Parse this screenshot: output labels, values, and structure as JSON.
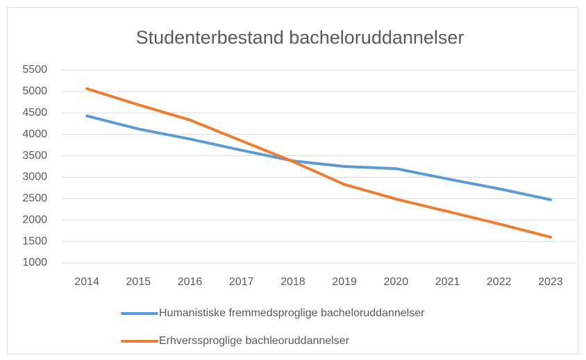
{
  "chart_data": {
    "type": "line",
    "title": "Studenterbestand bacheloruddannelser",
    "categories": [
      "2014",
      "2015",
      "2016",
      "2017",
      "2018",
      "2019",
      "2020",
      "2021",
      "2022",
      "2023"
    ],
    "series": [
      {
        "name": "Humanistiske fremmedsproglige bacheloruddannelser",
        "color": "#5b9bd5",
        "values": [
          4430,
          4125,
          3890,
          3630,
          3380,
          3250,
          3200,
          2960,
          2730,
          2475
        ]
      },
      {
        "name": "Erhverssproglige bachleoruddannelser",
        "color": "#ed7d31",
        "values": [
          5065,
          4690,
          4335,
          3850,
          3365,
          2830,
          2490,
          2200,
          1910,
          1600
        ]
      }
    ],
    "ylim": [
      1000,
      5500
    ],
    "yticks": [
      1000,
      1500,
      2000,
      2500,
      3000,
      3500,
      4000,
      4500,
      5000,
      5500
    ],
    "grid": true,
    "legend": "bottom"
  }
}
